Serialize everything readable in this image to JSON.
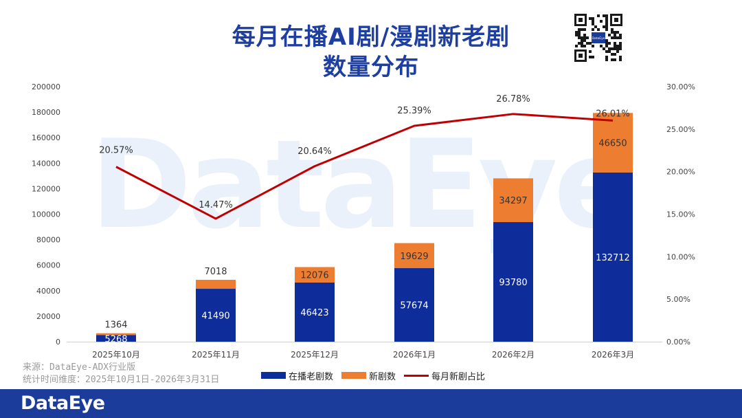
{
  "title_lines": [
    "每月在播AI剧/漫剧新老剧",
    "数量分布"
  ],
  "watermark": "DataEye",
  "qr_label": "DataEye",
  "source_lines": [
    "来源：DataEye-ADX行业版",
    "统计时间维度：2025年10月1日-2026年3月31日"
  ],
  "footer_logo": "DataEye",
  "colors": {
    "title": "#1f3fa0",
    "old": "#0e2d9b",
    "new": "#ed7d31",
    "line": "#c00000",
    "footer": "#1c3c9c",
    "watermark": "#eaf1fa"
  },
  "chart_data": {
    "type": "bar",
    "stacked": true,
    "categories": [
      "2025年10月",
      "2025年11月",
      "2025年12月",
      "2026年1月",
      "2026年2月",
      "2026年3月"
    ],
    "series": [
      {
        "name": "在播老剧数",
        "values": [
          5268,
          41490,
          46423,
          57674,
          93780,
          132712
        ]
      },
      {
        "name": "新剧数",
        "values": [
          1364,
          7018,
          12076,
          19629,
          34297,
          46650
        ]
      }
    ],
    "line_series": {
      "name": "每月新剧占比",
      "values": [
        20.57,
        14.47,
        20.64,
        25.39,
        26.78,
        26.01
      ],
      "labels": [
        "20.57%",
        "14.47%",
        "20.64%",
        "25.39%",
        "26.78%",
        "26.01%"
      ]
    },
    "ylim": [
      0,
      200000
    ],
    "y_ticks": [
      "0",
      "20000",
      "40000",
      "60000",
      "80000",
      "100000",
      "120000",
      "140000",
      "160000",
      "180000",
      "200000"
    ],
    "y2lim": [
      0,
      30
    ],
    "y2_ticks": [
      "0.00%",
      "5.00%",
      "10.00%",
      "15.00%",
      "20.00%",
      "25.00%",
      "30.00%"
    ],
    "legend": "bottom"
  }
}
